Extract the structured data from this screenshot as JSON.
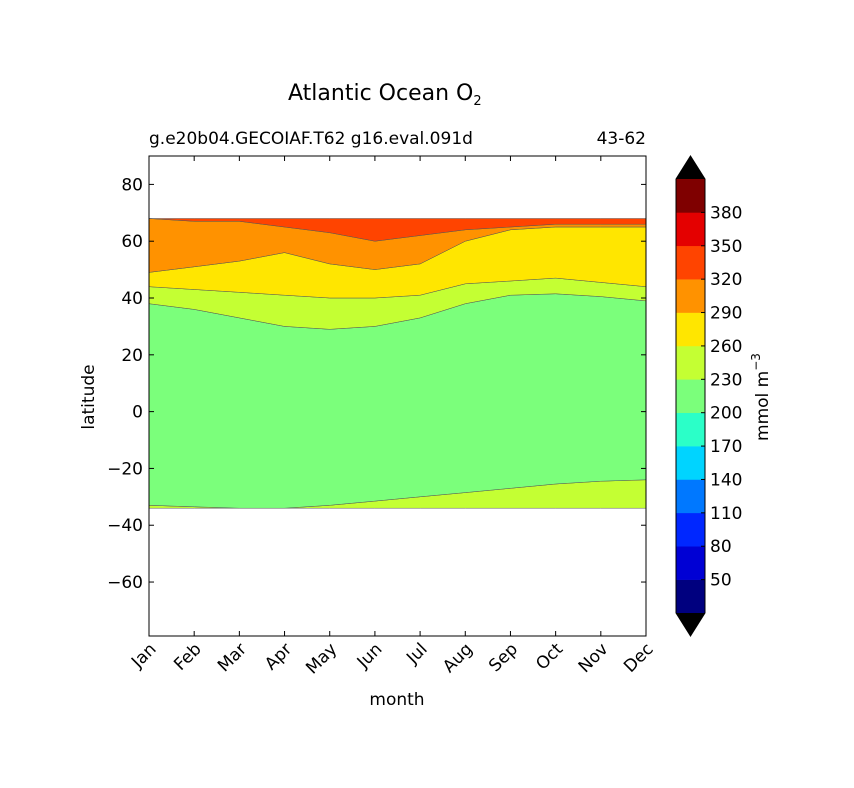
{
  "chart_data": {
    "type": "contour",
    "title": "Atlantic Ocean O",
    "title_subscript": "2",
    "subtitle_left": "g.e20b04.GECOIAF.T62 g16.eval.091d",
    "subtitle_right": "43-62",
    "xlabel": "month",
    "ylabel": "latitude",
    "x_categories": [
      "Jan",
      "Feb",
      "Mar",
      "Apr",
      "May",
      "Jun",
      "Jul",
      "Aug",
      "Sep",
      "Oct",
      "Nov",
      "Dec"
    ],
    "y_ticks": [
      80,
      60,
      40,
      20,
      0,
      -20,
      -40,
      -60
    ],
    "y_tick_labels": [
      "80",
      "60",
      "40",
      "20",
      "0",
      "−20",
      "−40",
      "−60"
    ],
    "ylim": [
      -79,
      90
    ],
    "data_lat_range": [
      -34,
      68
    ],
    "colorbar": {
      "label": "mmol m",
      "label_superscript": "−3",
      "levels": [
        20,
        50,
        80,
        110,
        140,
        170,
        200,
        230,
        260,
        290,
        320,
        350,
        380,
        410
      ],
      "tick_values": [
        "50",
        "80",
        "110",
        "140",
        "170",
        "200",
        "230",
        "260",
        "290",
        "320",
        "350",
        "380"
      ],
      "colors": [
        "#00007f",
        "#0000d4",
        "#0027ff",
        "#0078ff",
        "#00d4ff",
        "#2bffc8",
        "#7bff7b",
        "#c4ff33",
        "#ffe600",
        "#ff9200",
        "#ff4400",
        "#e40000",
        "#7f0000"
      ],
      "under_color": "#000000",
      "over_color": "#000000"
    },
    "contour_boundaries_lat_by_month": {
      "200_230_south": [
        -33,
        -33.5,
        -34,
        -34,
        -33,
        -31.5,
        -30,
        -28.5,
        -27,
        -25.5,
        -24.5,
        -24
      ],
      "230_260_north": [
        38,
        36,
        33,
        30,
        29,
        30,
        33,
        38,
        41,
        41.5,
        40.5,
        39
      ],
      "260_290_north": [
        44,
        43,
        42,
        41,
        40,
        40,
        41,
        45,
        46,
        47,
        45.5,
        44
      ],
      "290_320_south": [
        49,
        51,
        53,
        56,
        52,
        50,
        52,
        60,
        64,
        65,
        65,
        65
      ],
      "290_320_north": [
        68,
        67,
        67,
        65,
        63,
        60,
        62,
        64,
        65,
        66,
        66,
        66
      ]
    }
  }
}
